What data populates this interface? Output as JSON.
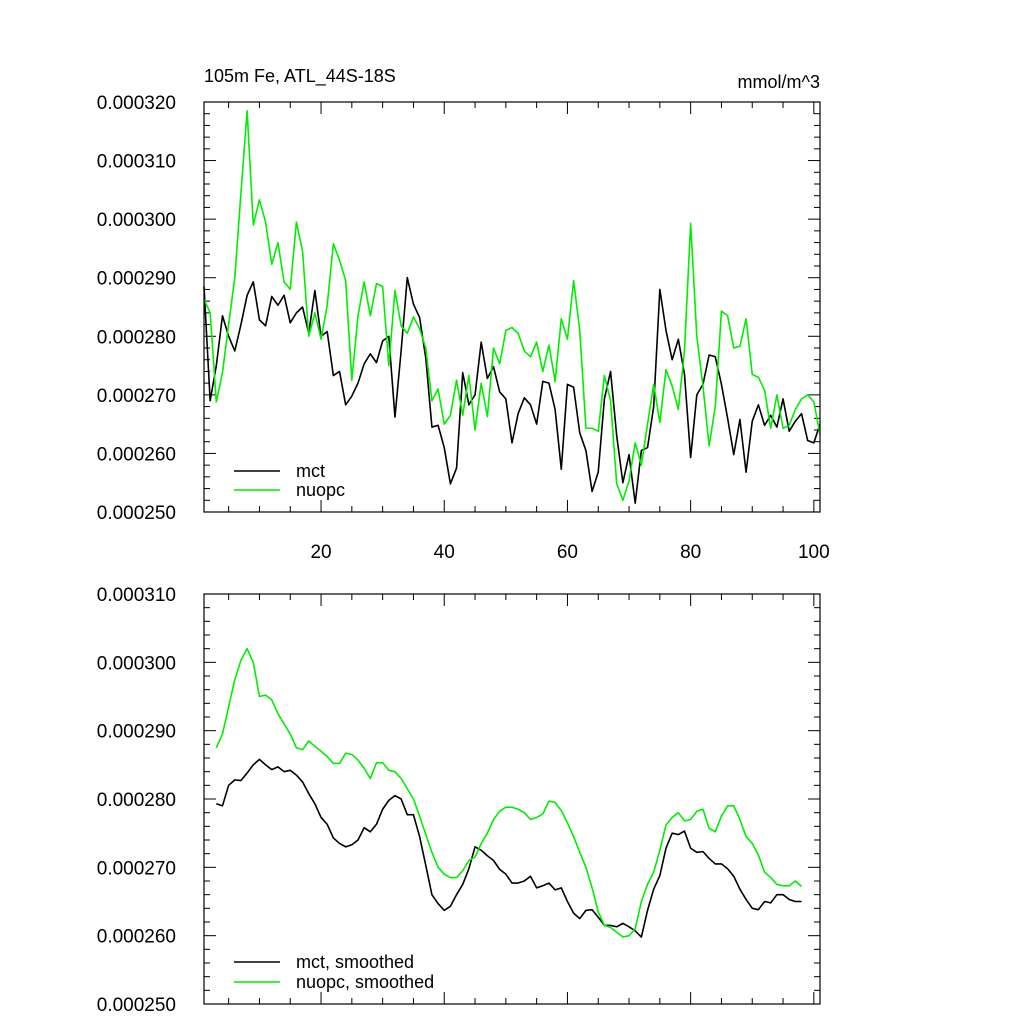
{
  "colors": {
    "mct": "#000000",
    "nuopc": "#00ee00",
    "axis": "#000000",
    "background": "#ffffff"
  },
  "chart_data": [
    {
      "type": "line",
      "title": "105m Fe, ATL_44S-18S",
      "units": "mmol/m^3",
      "xlim": [
        1,
        101
      ],
      "ylim": [
        0.00025,
        0.00032
      ],
      "yticks": [
        0.00025,
        0.00026,
        0.00027,
        0.00028,
        0.00029,
        0.0003,
        0.00031,
        0.00032
      ],
      "ytick_labels": [
        "0.000250",
        "0.000260",
        "0.000270",
        "0.000280",
        "0.000290",
        "0.000300",
        "0.000310",
        "0.000320"
      ],
      "xticks": [
        20,
        40,
        60,
        80,
        100
      ],
      "xtick_labels": [
        "20",
        "40",
        "60",
        "80",
        "100"
      ],
      "show_xtick_labels": true,
      "legend_position": "bottom-left",
      "series": [
        {
          "name": "mct",
          "color": "#000000",
          "x_start": 1,
          "values": [
            0.0002885,
            0.000269,
            0.000275,
            0.0002835,
            0.00028,
            0.0002775,
            0.000282,
            0.000287,
            0.0002893,
            0.0002828,
            0.0002818,
            0.0002868,
            0.0002853,
            0.000287,
            0.0002823,
            0.000284,
            0.000285,
            0.0002805,
            0.0002878,
            0.00028,
            0.0002808,
            0.0002733,
            0.000274,
            0.0002683,
            0.0002698,
            0.000272,
            0.0002753,
            0.000277,
            0.0002755,
            0.0002792,
            0.00028,
            0.0002662,
            0.0002775,
            0.00029,
            0.0002855,
            0.0002832,
            0.0002763,
            0.0002645,
            0.0002648,
            0.000261,
            0.0002548,
            0.0002575,
            0.0002738,
            0.0002683,
            0.00027,
            0.000279,
            0.0002728,
            0.0002748,
            0.0002705,
            0.0002693,
            0.0002618,
            0.0002668,
            0.0002695,
            0.0002683,
            0.000265,
            0.0002723,
            0.000272,
            0.0002675,
            0.0002573,
            0.0002718,
            0.0002713,
            0.0002635,
            0.0002605,
            0.0002535,
            0.0002568,
            0.0002693,
            0.000274,
            0.000263,
            0.000255,
            0.0002598,
            0.0002515,
            0.0002605,
            0.000261,
            0.000268,
            0.000288,
            0.000281,
            0.000276,
            0.0002795,
            0.0002735,
            0.0002593,
            0.00027,
            0.0002718,
            0.0002768,
            0.0002765,
            0.0002718,
            0.000266,
            0.0002598,
            0.0002658,
            0.0002568,
            0.0002655,
            0.0002683,
            0.0002648,
            0.0002665,
            0.0002645,
            0.0002693,
            0.0002638,
            0.0002655,
            0.0002668,
            0.0002622,
            0.0002618,
            0.000265
          ]
        },
        {
          "name": "nuopc",
          "color": "#00ee00",
          "x_start": 1,
          "values": [
            0.0002863,
            0.000284,
            0.0002688,
            0.0002738,
            0.000282,
            0.00029,
            0.0003045,
            0.0003185,
            0.000299,
            0.0003033,
            0.0002995,
            0.0002923,
            0.000296,
            0.0002893,
            0.000288,
            0.0002995,
            0.0002945,
            0.00028,
            0.000284,
            0.0002795,
            0.0002853,
            0.0002958,
            0.000293,
            0.0002895,
            0.0002725,
            0.0002835,
            0.0002893,
            0.0002835,
            0.000289,
            0.0002885,
            0.000275,
            0.0002878,
            0.0002818,
            0.0002805,
            0.0002833,
            0.0002813,
            0.000278,
            0.000269,
            0.000271,
            0.000265,
            0.0002665,
            0.0002725,
            0.0002665,
            0.0002733,
            0.000264,
            0.000272,
            0.0002663,
            0.000278,
            0.0002753,
            0.000281,
            0.0002815,
            0.0002805,
            0.0002775,
            0.0002765,
            0.000279,
            0.000274,
            0.0002785,
            0.0002723,
            0.000283,
            0.0002795,
            0.0002895,
            0.000281,
            0.0002643,
            0.0002643,
            0.0002638,
            0.0002733,
            0.000269,
            0.0002548,
            0.000252,
            0.0002553,
            0.0002618,
            0.000258,
            0.000265,
            0.0002718,
            0.0002653,
            0.0002743,
            0.0002715,
            0.0002675,
            0.0002775,
            0.0002993,
            0.00028,
            0.0002715,
            0.0002613,
            0.000268,
            0.0002843,
            0.0002835,
            0.000278,
            0.0002783,
            0.000283,
            0.0002735,
            0.000273,
            0.0002708,
            0.0002643,
            0.00027,
            0.0002643,
            0.0002648,
            0.0002675,
            0.0002693,
            0.00027,
            0.0002688,
            0.0002633
          ]
        }
      ]
    },
    {
      "type": "line",
      "title": "",
      "units": "",
      "xlim": [
        1,
        101
      ],
      "ylim": [
        0.00025,
        0.00031
      ],
      "yticks": [
        0.00025,
        0.00026,
        0.00027,
        0.00028,
        0.00029,
        0.0003,
        0.00031
      ],
      "ytick_labels": [
        "0.000250",
        "0.000260",
        "0.000270",
        "0.000280",
        "0.000290",
        "0.000300",
        "0.000310"
      ],
      "xticks": [
        20,
        40,
        60,
        80,
        100
      ],
      "xtick_labels": [],
      "show_xtick_labels": false,
      "legend_position": "bottom-left",
      "series": [
        {
          "name": "mct, smoothed",
          "color": "#000000",
          "x_start": 3,
          "values": [
            0.0002793,
            0.000279,
            0.000282,
            0.0002828,
            0.0002827,
            0.0002838,
            0.000285,
            0.0002858,
            0.000285,
            0.0002843,
            0.0002847,
            0.000284,
            0.0002842,
            0.0002835,
            0.0002825,
            0.0002808,
            0.0002793,
            0.0002773,
            0.0002763,
            0.0002743,
            0.0002735,
            0.000273,
            0.0002733,
            0.000274,
            0.0002758,
            0.0002752,
            0.0002763,
            0.0002785,
            0.0002798,
            0.0002805,
            0.00028,
            0.0002777,
            0.0002777,
            0.0002745,
            0.0002703,
            0.000266,
            0.0002647,
            0.0002637,
            0.0002643,
            0.000266,
            0.0002675,
            0.0002698,
            0.000273,
            0.0002725,
            0.0002717,
            0.000271,
            0.0002697,
            0.000269,
            0.0002677,
            0.0002677,
            0.000268,
            0.0002687,
            0.000267,
            0.0002673,
            0.0002677,
            0.0002667,
            0.000267,
            0.000265,
            0.0002633,
            0.0002625,
            0.0002637,
            0.0002638,
            0.0002627,
            0.0002615,
            0.0002615,
            0.0002613,
            0.0002618,
            0.0002613,
            0.0002607,
            0.0002598,
            0.0002637,
            0.0002668,
            0.0002688,
            0.0002728,
            0.000275,
            0.0002748,
            0.0002753,
            0.0002728,
            0.0002722,
            0.0002723,
            0.0002713,
            0.0002705,
            0.0002705,
            0.0002698,
            0.0002687,
            0.0002668,
            0.0002653,
            0.000264,
            0.0002638,
            0.000265,
            0.0002648,
            0.000266,
            0.000266,
            0.0002653,
            0.000265,
            0.000265
          ]
        },
        {
          "name": "nuopc, smoothed",
          "color": "#00ee00",
          "x_start": 3,
          "values": [
            0.0002875,
            0.0002895,
            0.0002935,
            0.0002975,
            0.0003003,
            0.000302,
            0.0003,
            0.000295,
            0.0002952,
            0.0002945,
            0.0002925,
            0.000291,
            0.0002895,
            0.0002875,
            0.0002872,
            0.0002885,
            0.0002877,
            0.000287,
            0.0002862,
            0.0002852,
            0.0002852,
            0.0002867,
            0.0002865,
            0.0002857,
            0.0002845,
            0.000283,
            0.0002853,
            0.0002853,
            0.0002842,
            0.000284,
            0.000283,
            0.0002815,
            0.00028,
            0.0002775,
            0.0002748,
            0.0002722,
            0.00027,
            0.000269,
            0.0002685,
            0.0002685,
            0.0002695,
            0.000271,
            0.0002715,
            0.0002735,
            0.000275,
            0.000277,
            0.0002782,
            0.0002788,
            0.0002788,
            0.0002785,
            0.000278,
            0.000277,
            0.0002773,
            0.0002778,
            0.0002797,
            0.0002795,
            0.0002783,
            0.0002765,
            0.0002745,
            0.0002722,
            0.00027,
            0.000267,
            0.0002635,
            0.0002615,
            0.0002612,
            0.0002605,
            0.0002598,
            0.00026,
            0.000261,
            0.000265,
            0.0002675,
            0.0002693,
            0.0002725,
            0.0002762,
            0.0002773,
            0.000278,
            0.0002768,
            0.000277,
            0.0002782,
            0.0002785,
            0.0002757,
            0.0002752,
            0.0002775,
            0.000279,
            0.000279,
            0.000277,
            0.0002745,
            0.0002735,
            0.0002718,
            0.0002693,
            0.0002685,
            0.0002675,
            0.0002673,
            0.0002673,
            0.000268,
            0.0002672
          ]
        }
      ]
    }
  ]
}
